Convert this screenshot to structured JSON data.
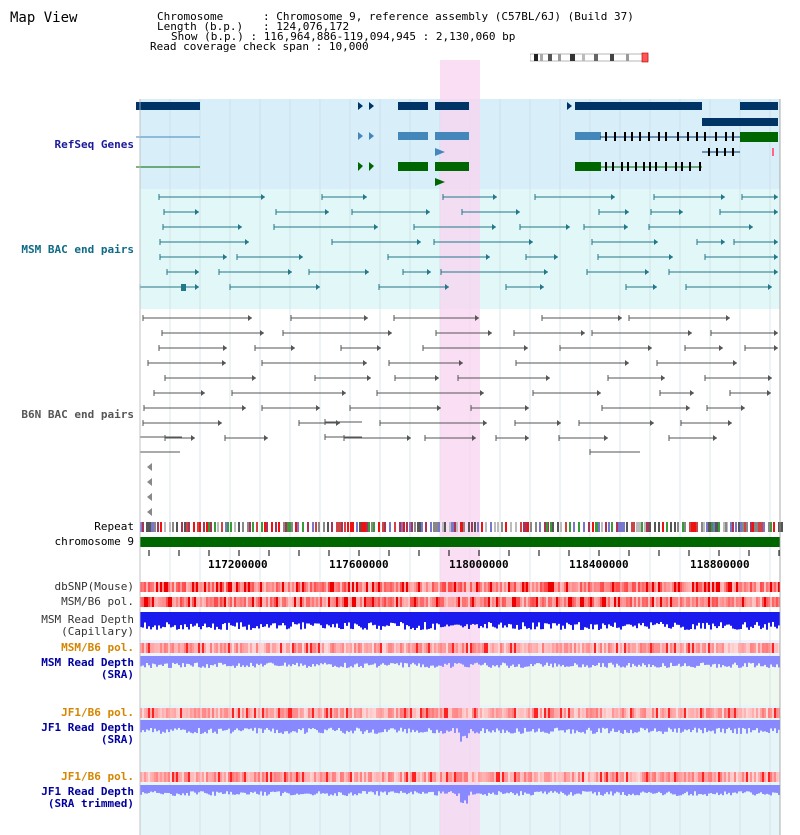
{
  "header": {
    "title": "Map View",
    "chromosome_key": "Chromosome",
    "chromosome_val": "Chromosome 9, reference assembly (C57BL/6J) (Build 37)",
    "length_key": "Length (b.p.)",
    "length_val": "124,076,172",
    "show_key": "Show (b.p.)",
    "show_val": "116,964,886-119,094,945 : 2,130,060 bp",
    "span_key": "Read coverage check span",
    "span_val": "10,000"
  },
  "tracks": {
    "refseq": "RefSeq Genes",
    "msm_bac": "MSM BAC end pairs",
    "b6n_bac": "B6N BAC end pairs",
    "repeat": "Repeat",
    "chromosome": "chromosome 9",
    "dbsnp": "dbSNP(Mouse)",
    "msm_b6_pol": "MSM/B6 pol.",
    "msm_depth_cap_1": "MSM Read Depth",
    "msm_depth_cap_2": "(Capillary)",
    "msm_b6_pol_2": "MSM/B6 pol.",
    "msm_depth_sra_1": "MSM Read Depth",
    "msm_depth_sra_2": "(SRA)",
    "jf1_b6_pol": "JF1/B6 pol.",
    "jf1_depth_sra_1": "JF1 Read Depth",
    "jf1_depth_sra_2": "(SRA)",
    "jf1_b6_pol_2": "JF1/B6 pol.",
    "jf1_trim_1": "JF1 Read Depth",
    "jf1_trim_2": "(SRA trimmed)"
  },
  "axis": {
    "ticks": [
      "117200000",
      "117600000",
      "118000000",
      "118400000",
      "118800000"
    ]
  },
  "colors": {
    "refseq_dark": "#003366",
    "refseq_mid": "#4488bb",
    "refseq_green": "#006600",
    "msm_line": "#227788",
    "b6n_line": "#555555",
    "highlight": "#f7d6f1",
    "chrom_green": "#006600",
    "depth_blue": "#1a1aee",
    "depth_light": "#8888ff"
  }
}
